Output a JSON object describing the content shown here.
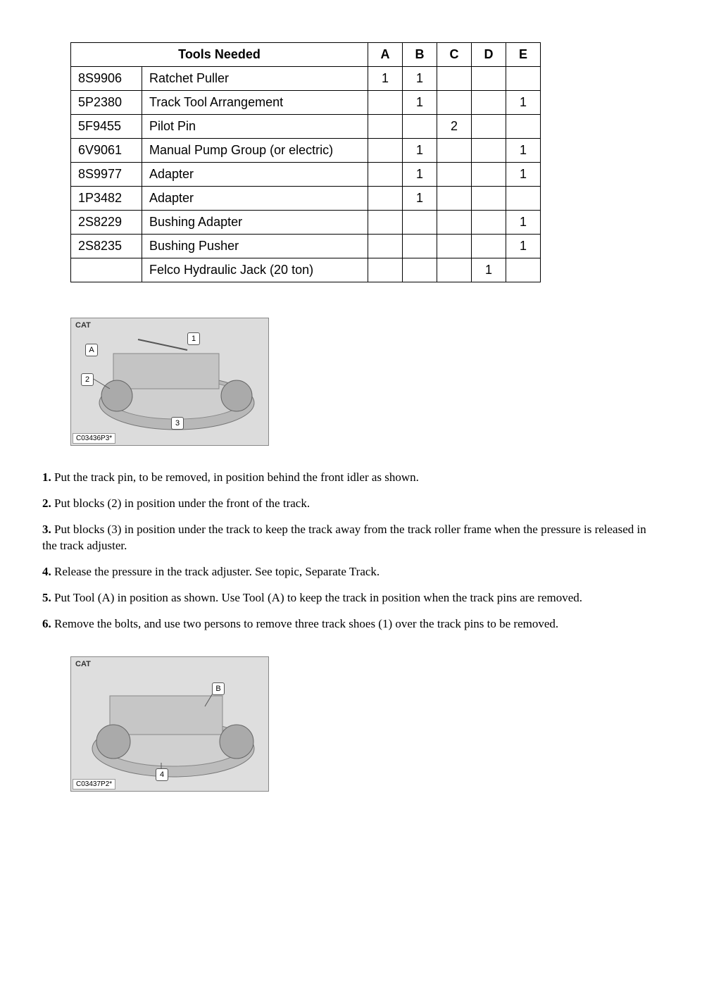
{
  "table": {
    "header": {
      "title": "Tools Needed",
      "cols": [
        "A",
        "B",
        "C",
        "D",
        "E"
      ]
    },
    "rows": [
      {
        "part": "8S9906",
        "desc": "Ratchet Puller",
        "q": [
          "1",
          "1",
          "",
          "",
          ""
        ]
      },
      {
        "part": "5P2380",
        "desc": "Track Tool Arrangement",
        "q": [
          "",
          "1",
          "",
          "",
          "1"
        ]
      },
      {
        "part": "5F9455",
        "desc": "Pilot Pin",
        "q": [
          "",
          "",
          "2",
          "",
          ""
        ]
      },
      {
        "part": "6V9061",
        "desc": "Manual Pump Group (or electric)",
        "q": [
          "",
          "1",
          "",
          "",
          "1"
        ]
      },
      {
        "part": "8S9977",
        "desc": "Adapter",
        "q": [
          "",
          "1",
          "",
          "",
          "1"
        ]
      },
      {
        "part": "1P3482",
        "desc": "Adapter",
        "q": [
          "",
          "1",
          "",
          "",
          ""
        ]
      },
      {
        "part": "2S8229",
        "desc": "Bushing Adapter",
        "q": [
          "",
          "",
          "",
          "",
          "1"
        ]
      },
      {
        "part": "2S8235",
        "desc": "Bushing Pusher",
        "q": [
          "",
          "",
          "",
          "",
          "1"
        ]
      },
      {
        "part": "",
        "desc": "Felco Hydraulic Jack (20 ton)",
        "q": [
          "",
          "",
          "",
          "1",
          ""
        ]
      }
    ]
  },
  "fig1": {
    "cat": "CAT",
    "label": "C03436P3*",
    "callouts": {
      "a": "A",
      "n1": "1",
      "n2": "2",
      "n3": "3"
    }
  },
  "fig2": {
    "cat": "CAT",
    "label": "C03437P2*",
    "callouts": {
      "b": "B",
      "n4": "4"
    }
  },
  "steps": {
    "s1b": "1.",
    "s1": " Put the track pin, to be removed, in position behind the front idler as shown.",
    "s2b": "2.",
    "s2": " Put blocks (2) in position under the front of the track.",
    "s3b": "3.",
    "s3": " Put blocks (3) in position under the track to keep the track away from the track roller frame when the pressure is released in the track adjuster.",
    "s4b": "4.",
    "s4": " Release the pressure in the track adjuster. See topic, Separate Track.",
    "s5b": "5.",
    "s5": " Put Tool (A) in position as shown. Use Tool (A) to keep the track in position when the track pins are removed.",
    "s6b": "6.",
    "s6": " Remove the bolts, and use two persons to remove three track shoes (1) over the track pins to be removed."
  }
}
